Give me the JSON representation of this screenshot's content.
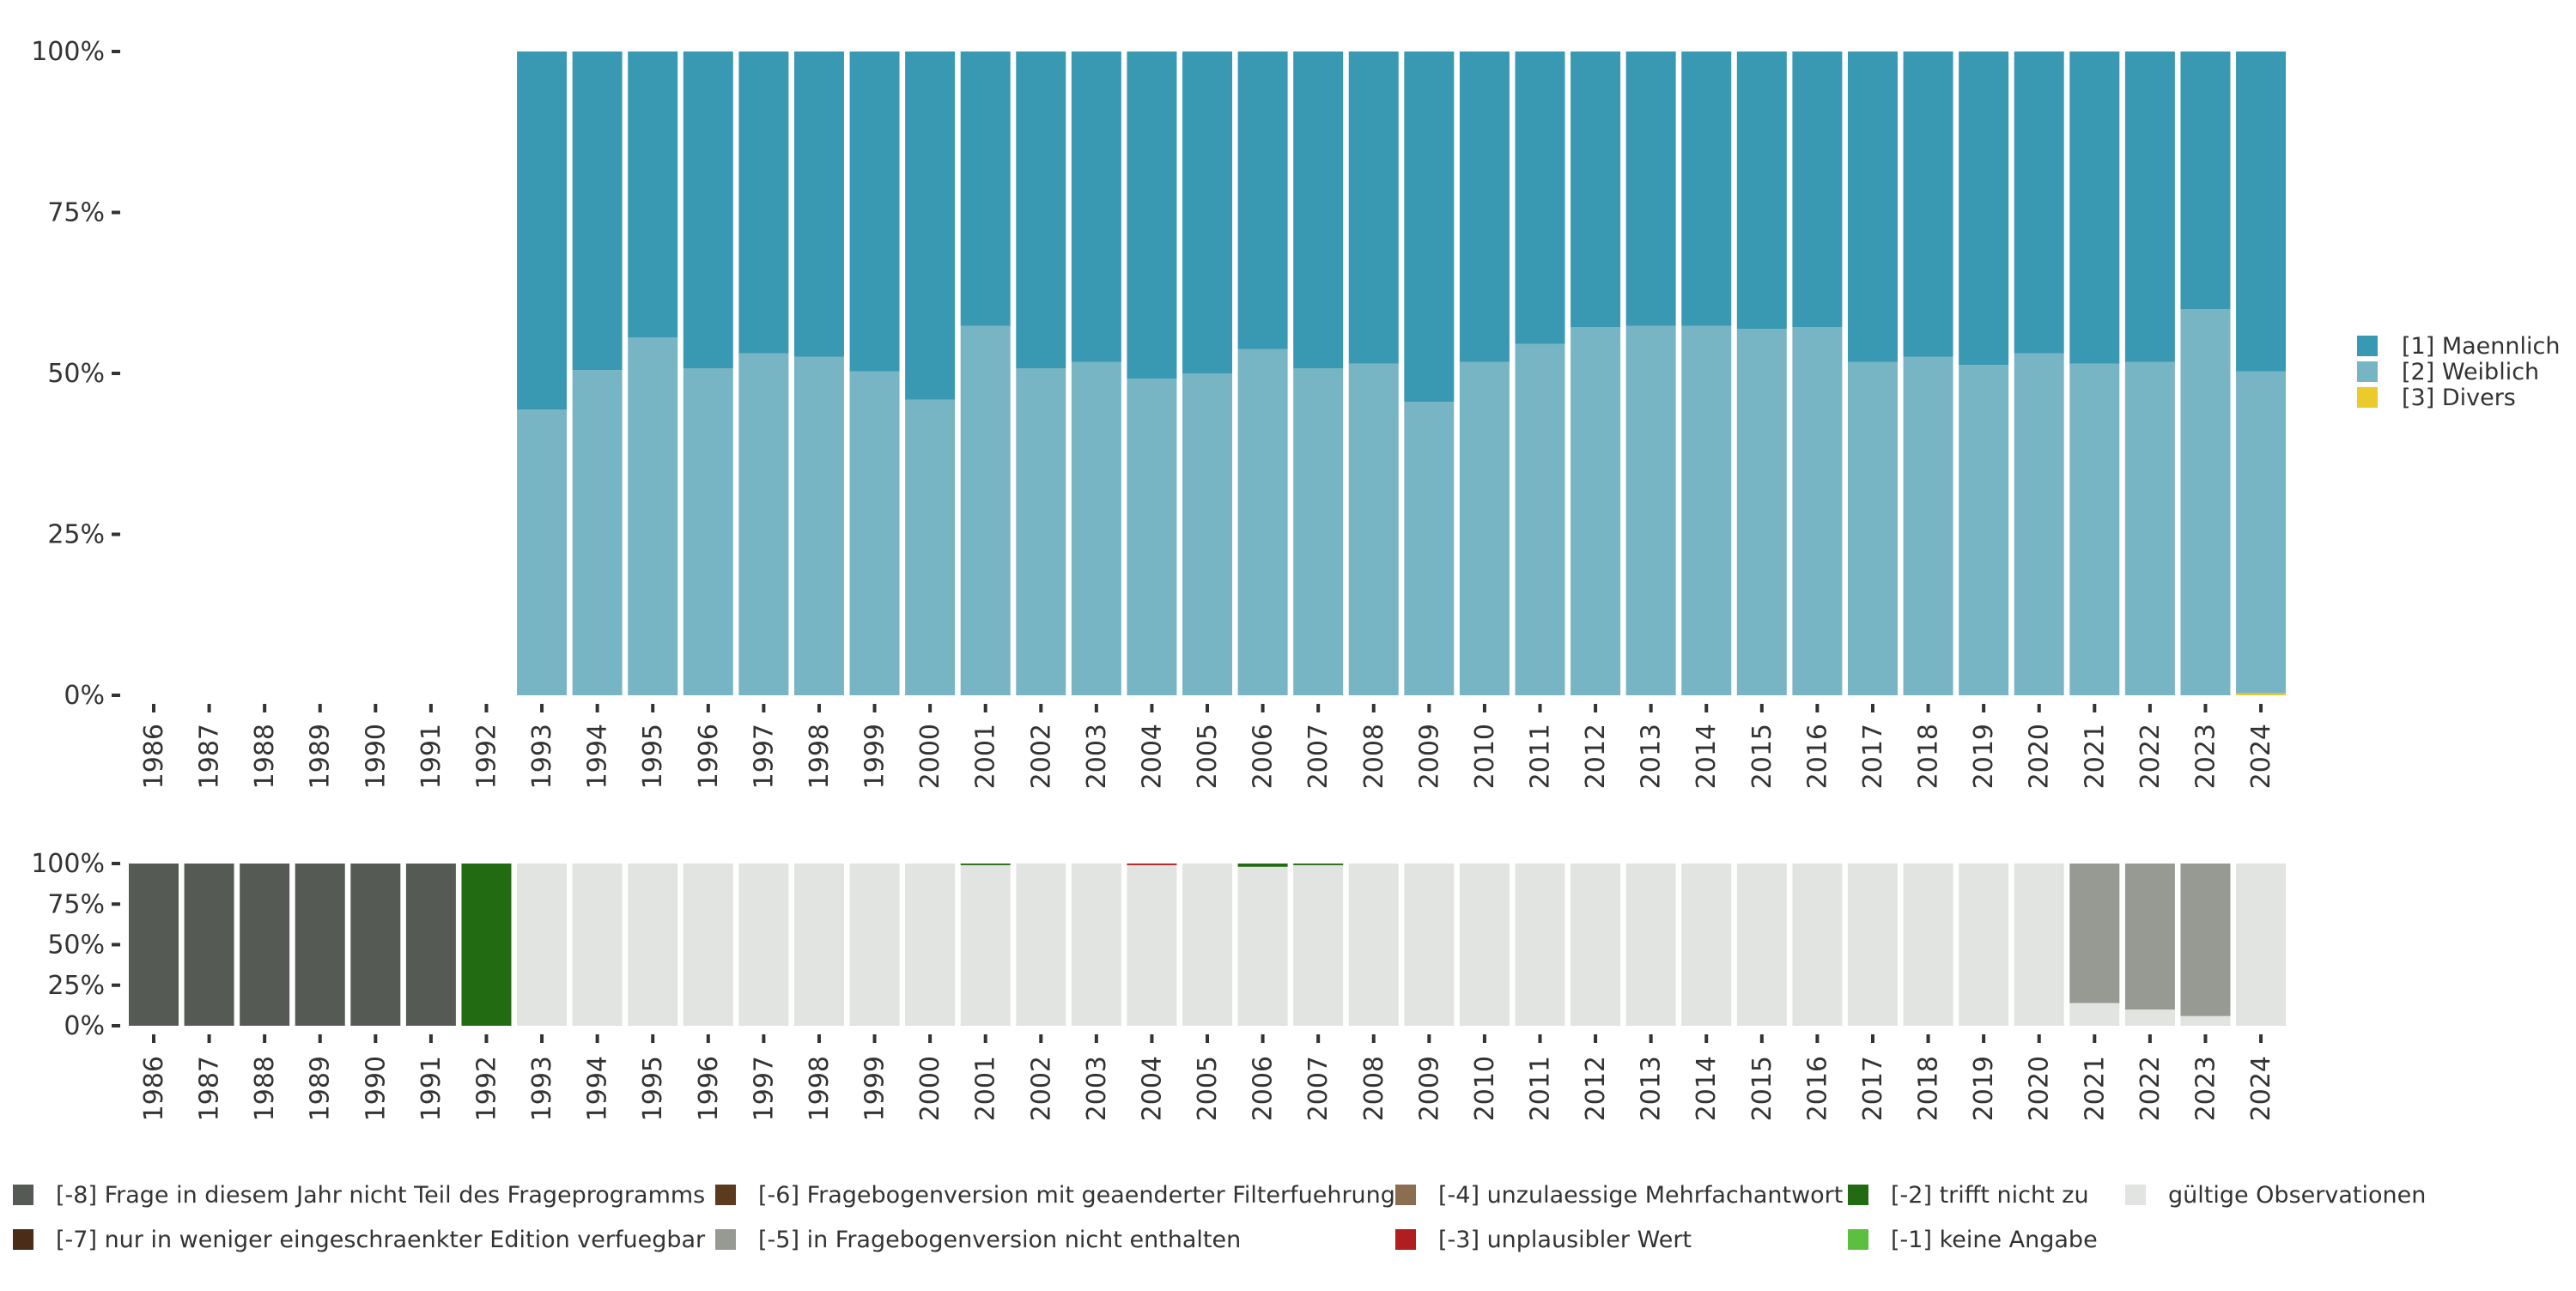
{
  "chart_data": [
    {
      "type": "bar",
      "stacked": true,
      "title": "",
      "xlabel": "",
      "ylabel": "",
      "ylim": [
        0,
        100
      ],
      "yticks": [
        "0%",
        "25%",
        "50%",
        "75%",
        "100%"
      ],
      "categories": [
        "1986",
        "1987",
        "1988",
        "1989",
        "1990",
        "1991",
        "1992",
        "1993",
        "1994",
        "1995",
        "1996",
        "1997",
        "1998",
        "1999",
        "2000",
        "2001",
        "2002",
        "2003",
        "2004",
        "2005",
        "2006",
        "2007",
        "2008",
        "2009",
        "2010",
        "2011",
        "2012",
        "2013",
        "2014",
        "2015",
        "2016",
        "2017",
        "2018",
        "2019",
        "2020",
        "2021",
        "2022",
        "2023",
        "2024"
      ],
      "legend_position": "right",
      "series": [
        {
          "name": "[3] Divers",
          "color": "#ebcb2b",
          "values": [
            null,
            null,
            null,
            null,
            null,
            null,
            null,
            0,
            0,
            0,
            0,
            0,
            0,
            0,
            0,
            0,
            0,
            0,
            0,
            0,
            0,
            0,
            0,
            0,
            0,
            0,
            0,
            0,
            0,
            0,
            0,
            0,
            0,
            0,
            0,
            0,
            0,
            0,
            0.3
          ]
        },
        {
          "name": "[2] Weiblich",
          "color": "#78b5c4",
          "values": [
            null,
            null,
            null,
            null,
            null,
            null,
            null,
            44.4,
            50.5,
            55.6,
            50.8,
            53.1,
            52.6,
            50.3,
            45.9,
            57.4,
            50.8,
            51.8,
            49.2,
            50.0,
            53.8,
            50.8,
            51.5,
            45.6,
            51.8,
            54.6,
            57.2,
            57.4,
            57.4,
            56.9,
            57.2,
            51.8,
            52.6,
            51.3,
            53.1,
            51.5,
            51.8,
            60.0,
            50.0
          ]
        },
        {
          "name": "[1] Maennlich",
          "color": "#3a99b2",
          "values": [
            null,
            null,
            null,
            null,
            null,
            null,
            null,
            55.6,
            49.5,
            44.4,
            49.2,
            46.9,
            47.4,
            49.7,
            54.1,
            42.6,
            49.2,
            48.2,
            50.8,
            50.0,
            46.2,
            49.2,
            48.5,
            54.4,
            48.2,
            45.4,
            42.8,
            42.6,
            42.6,
            43.1,
            42.8,
            48.2,
            47.4,
            48.7,
            46.9,
            48.5,
            48.2,
            40.0,
            49.7
          ]
        }
      ],
      "legend_order": [
        "[1] Maennlich",
        "[2] Weiblich",
        "[3] Divers"
      ]
    },
    {
      "type": "bar",
      "stacked": true,
      "title": "",
      "ylim": [
        0,
        100
      ],
      "yticks": [
        "0%",
        "25%",
        "50%",
        "75%",
        "100%"
      ],
      "categories": [
        "1986",
        "1987",
        "1988",
        "1989",
        "1990",
        "1991",
        "1992",
        "1993",
        "1994",
        "1995",
        "1996",
        "1997",
        "1998",
        "1999",
        "2000",
        "2001",
        "2002",
        "2003",
        "2004",
        "2005",
        "2006",
        "2007",
        "2008",
        "2009",
        "2010",
        "2011",
        "2012",
        "2013",
        "2014",
        "2015",
        "2016",
        "2017",
        "2018",
        "2019",
        "2020",
        "2021",
        "2022",
        "2023",
        "2024"
      ],
      "legend_position": "bottom",
      "series": [
        {
          "name": "gültige Observationen",
          "color": "#e1e4e0",
          "values": [
            0,
            0,
            0,
            0,
            0,
            0,
            0,
            100,
            100,
            100,
            100,
            100,
            100,
            100,
            100,
            99,
            100,
            100,
            99,
            100,
            98,
            99,
            100,
            100,
            100,
            100,
            100,
            100,
            100,
            100,
            100,
            100,
            100,
            100,
            100,
            14,
            10,
            6,
            100
          ]
        },
        {
          "name": "[-1] keine Angabe",
          "color": "#5cbf3f",
          "values": [
            0,
            0,
            0,
            0,
            0,
            0,
            0,
            0,
            0,
            0,
            0,
            0,
            0,
            0,
            0,
            0,
            0,
            0,
            0,
            0,
            0,
            0,
            0,
            0,
            0,
            0,
            0,
            0,
            0,
            0,
            0,
            0,
            0,
            0,
            0,
            0,
            0,
            0,
            0
          ]
        },
        {
          "name": "[-2] trifft nicht zu",
          "color": "#236b12",
          "values": [
            0,
            0,
            0,
            0,
            0,
            0,
            100,
            0,
            0,
            0,
            0,
            0,
            0,
            0,
            0,
            1,
            0,
            0,
            0,
            0,
            2,
            1,
            0,
            0,
            0,
            0,
            0,
            0,
            0,
            0,
            0,
            0,
            0,
            0,
            0,
            0,
            0,
            0,
            0
          ]
        },
        {
          "name": "[-3] unplausibler Wert",
          "color": "#b01e1e",
          "values": [
            0,
            0,
            0,
            0,
            0,
            0,
            0,
            0,
            0,
            0,
            0,
            0,
            0,
            0,
            0,
            0,
            0,
            0,
            1,
            0,
            0,
            0,
            0,
            0,
            0,
            0,
            0,
            0,
            0,
            0,
            0,
            0,
            0,
            0,
            0,
            0,
            0,
            0,
            0
          ]
        },
        {
          "name": "[-4] unzulaessige Mehrfachantwort",
          "color": "#8b6d4f",
          "values": [
            0,
            0,
            0,
            0,
            0,
            0,
            0,
            0,
            0,
            0,
            0,
            0,
            0,
            0,
            0,
            0,
            0,
            0,
            0,
            0,
            0,
            0,
            0,
            0,
            0,
            0,
            0,
            0,
            0,
            0,
            0,
            0,
            0,
            0,
            0,
            0,
            0,
            0,
            0
          ]
        },
        {
          "name": "[-5] in Fragebogenversion nicht enthalten",
          "color": "#979a93",
          "values": [
            0,
            0,
            0,
            0,
            0,
            0,
            0,
            0,
            0,
            0,
            0,
            0,
            0,
            0,
            0,
            0,
            0,
            0,
            0,
            0,
            0,
            0,
            0,
            0,
            0,
            0,
            0,
            0,
            0,
            0,
            0,
            0,
            0,
            0,
            0,
            86,
            90,
            94,
            0
          ]
        },
        {
          "name": "[-6] Fragebogenversion mit geaenderter Filterfuehrung",
          "color": "#5c3a1e",
          "values": [
            0,
            0,
            0,
            0,
            0,
            0,
            0,
            0,
            0,
            0,
            0,
            0,
            0,
            0,
            0,
            0,
            0,
            0,
            0,
            0,
            0,
            0,
            0,
            0,
            0,
            0,
            0,
            0,
            0,
            0,
            0,
            0,
            0,
            0,
            0,
            0,
            0,
            0,
            0
          ]
        },
        {
          "name": "[-7] nur in weniger eingeschraenkter Edition verfuegbar",
          "color": "#4a2c18",
          "values": [
            0,
            0,
            0,
            0,
            0,
            0,
            0,
            0,
            0,
            0,
            0,
            0,
            0,
            0,
            0,
            0,
            0,
            0,
            0,
            0,
            0,
            0,
            0,
            0,
            0,
            0,
            0,
            0,
            0,
            0,
            0,
            0,
            0,
            0,
            0,
            0,
            0,
            0,
            0
          ]
        },
        {
          "name": "[-8] Frage in diesem Jahr nicht Teil des Frageprogramms",
          "color": "#555b54",
          "values": [
            100,
            100,
            100,
            100,
            100,
            100,
            0,
            0,
            0,
            0,
            0,
            0,
            0,
            0,
            0,
            0,
            0,
            0,
            0,
            0,
            0,
            0,
            0,
            0,
            0,
            0,
            0,
            0,
            0,
            0,
            0,
            0,
            0,
            0,
            0,
            0,
            0,
            0,
            0
          ]
        }
      ],
      "legend_order": [
        "[-8] Frage in diesem Jahr nicht Teil des Frageprogramms",
        "[-7] nur in weniger eingeschraenkter Edition verfuegbar",
        "[-6] Fragebogenversion mit geaenderter Filterfuehrung",
        "[-5] in Fragebogenversion nicht enthalten",
        "[-4] unzulaessige Mehrfachantwort",
        "[-3] unplausibler Wert",
        "[-2] trifft nicht zu",
        "[-1] keine Angabe",
        "gültige Observationen"
      ]
    }
  ]
}
